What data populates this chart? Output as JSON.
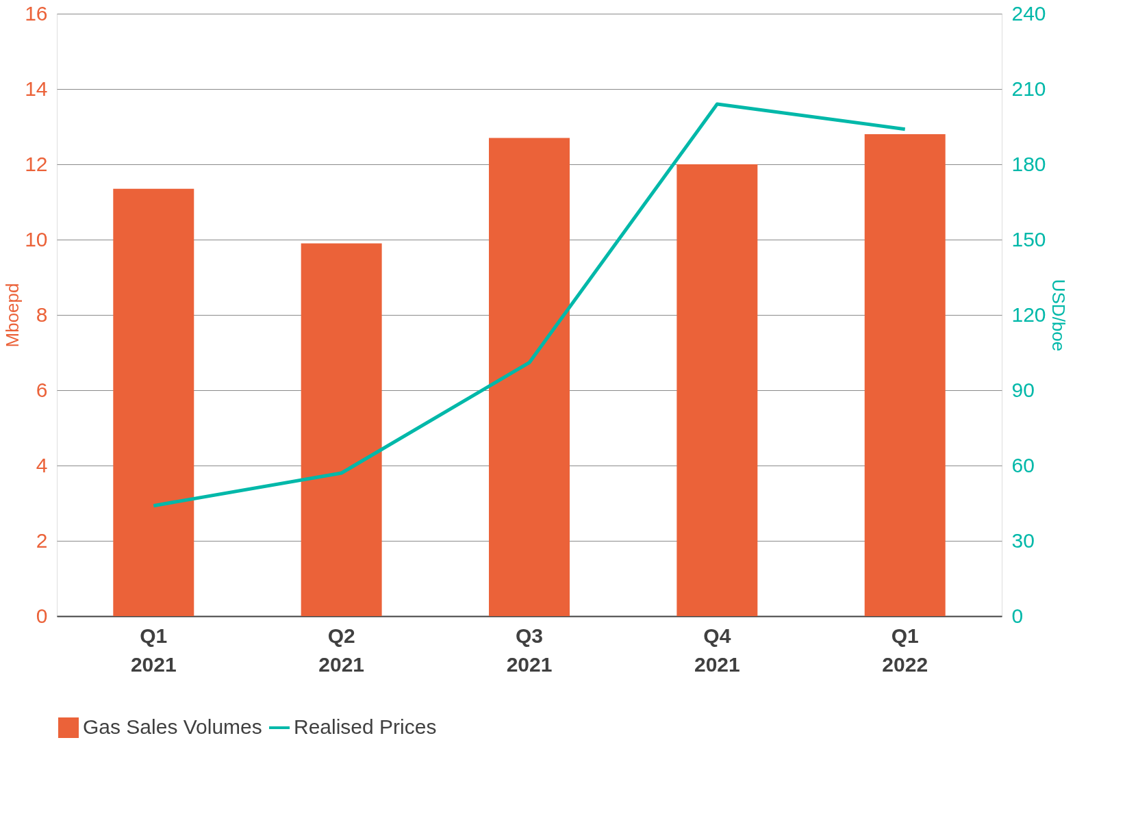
{
  "chart_data": {
    "type": "bar",
    "categories": [
      "Q1 2021",
      "Q2 2021",
      "Q3 2021",
      "Q4 2021",
      "Q1 2022"
    ],
    "ylabel": "Mboepd",
    "y2label": "USD/boe",
    "series": [
      {
        "name": "Gas Sales Volumes",
        "color": "#eb6239",
        "values": [
          11.35,
          9.9,
          12.7,
          12.0,
          12.8
        ]
      },
      {
        "name": "Realised Prices",
        "type": "line",
        "axis": "y2",
        "color": "#00b8a9",
        "values": [
          44,
          57,
          101,
          204,
          194
        ]
      }
    ],
    "ylim": [
      0,
      16
    ],
    "yticks": [
      0,
      2,
      4,
      6,
      8,
      10,
      12,
      14,
      16
    ],
    "y2lim": [
      0,
      240
    ],
    "y2ticks": [
      0,
      30,
      60,
      90,
      120,
      150,
      180,
      210,
      240
    ],
    "grid": "y",
    "legend": "bottom"
  }
}
